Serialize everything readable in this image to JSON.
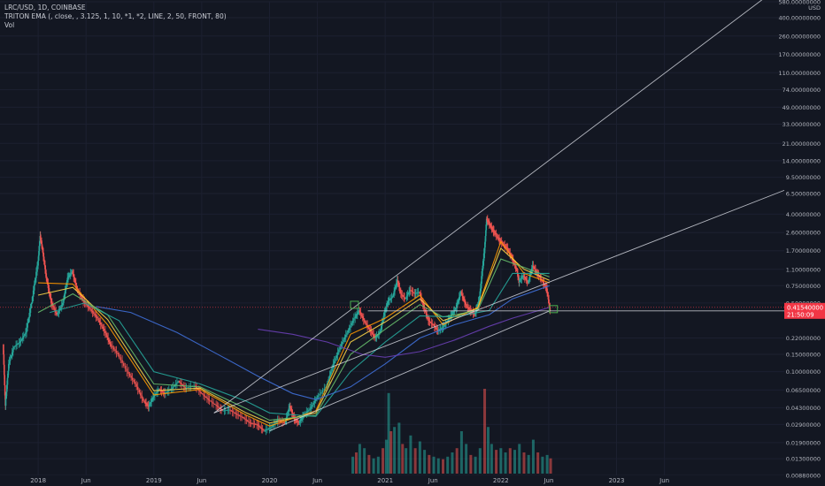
{
  "header": {
    "symbol_line": "LRC/USD, 1D, COINBASE",
    "indicator_line": "TRITON EMA (, close, , 3.125, 1, 10, *1, *2, LINE, 2, 50, FRONT, 80)",
    "volume_line": "Vol"
  },
  "price_axis": {
    "currency": "USD",
    "current_price": "0.41540000",
    "countdown": "21:50:09"
  },
  "colors": {
    "background": "#131722",
    "up_candle": "#26a69a",
    "down_candle": "#ef5350",
    "price_label": "#f23645",
    "trendline": "#d1d4dc"
  },
  "chart_data": {
    "type": "line",
    "scale": "log",
    "ylim": [
      0.0088,
      580
    ],
    "y_ticks": [
      {
        "label": "580.00000000",
        "value": 580
      },
      {
        "label": "400.00000000",
        "value": 400
      },
      {
        "label": "260.00000000",
        "value": 260
      },
      {
        "label": "170.00000000",
        "value": 170
      },
      {
        "label": "110.00000000",
        "value": 110
      },
      {
        "label": "74.00000000",
        "value": 74
      },
      {
        "label": "49.00000000",
        "value": 49
      },
      {
        "label": "33.00000000",
        "value": 33
      },
      {
        "label": "21.00000000",
        "value": 21
      },
      {
        "label": "14.00000000",
        "value": 14
      },
      {
        "label": "9.50000000",
        "value": 9.5
      },
      {
        "label": "6.50000000",
        "value": 6.5
      },
      {
        "label": "4.00000000",
        "value": 4.0
      },
      {
        "label": "2.60000000",
        "value": 2.6
      },
      {
        "label": "1.70000000",
        "value": 1.7
      },
      {
        "label": "1.10000000",
        "value": 1.1
      },
      {
        "label": "0.75000000",
        "value": 0.75
      },
      {
        "label": "0.50000000",
        "value": 0.5
      },
      {
        "label": "0.22000000",
        "value": 0.22
      },
      {
        "label": "0.15000000",
        "value": 0.15
      },
      {
        "label": "0.10000000",
        "value": 0.1
      },
      {
        "label": "0.06500000",
        "value": 0.065
      },
      {
        "label": "0.04300000",
        "value": 0.043
      },
      {
        "label": "0.02900000",
        "value": 0.029
      },
      {
        "label": "0.01900000",
        "value": 0.019
      },
      {
        "label": "0.01300000",
        "value": 0.013
      },
      {
        "label": "0.00880000",
        "value": 0.0088
      }
    ],
    "x_ticks": [
      {
        "label": "2018",
        "t": 0.0
      },
      {
        "label": "Jun",
        "t": 0.414
      },
      {
        "label": "2019",
        "t": 1.0
      },
      {
        "label": "Jun",
        "t": 1.414
      },
      {
        "label": "2020",
        "t": 2.0
      },
      {
        "label": "Jun",
        "t": 2.414
      },
      {
        "label": "2021",
        "t": 3.0
      },
      {
        "label": "Jun",
        "t": 3.414
      },
      {
        "label": "2022",
        "t": 4.0
      },
      {
        "label": "Jun",
        "t": 4.414
      },
      {
        "label": "2023",
        "t": 5.0
      },
      {
        "label": "Jun",
        "t": 5.414
      }
    ],
    "x_range": [
      -0.33,
      6.45
    ],
    "current_price": 0.4154,
    "price_path": [
      [
        -0.3,
        0.19
      ],
      [
        -0.28,
        0.045
      ],
      [
        -0.25,
        0.12
      ],
      [
        -0.2,
        0.18
      ],
      [
        -0.15,
        0.2
      ],
      [
        -0.1,
        0.25
      ],
      [
        -0.05,
        0.5
      ],
      [
        0.0,
        1.2
      ],
      [
        0.02,
        2.4
      ],
      [
        0.04,
        1.8
      ],
      [
        0.07,
        1.0
      ],
      [
        0.12,
        0.5
      ],
      [
        0.17,
        0.38
      ],
      [
        0.22,
        0.5
      ],
      [
        0.26,
        0.9
      ],
      [
        0.3,
        1.05
      ],
      [
        0.34,
        0.7
      ],
      [
        0.4,
        0.52
      ],
      [
        0.46,
        0.43
      ],
      [
        0.52,
        0.35
      ],
      [
        0.58,
        0.26
      ],
      [
        0.63,
        0.19
      ],
      [
        0.7,
        0.15
      ],
      [
        0.78,
        0.1
      ],
      [
        0.85,
        0.075
      ],
      [
        0.92,
        0.05
      ],
      [
        0.96,
        0.044
      ],
      [
        1.0,
        0.055
      ],
      [
        1.05,
        0.066
      ],
      [
        1.1,
        0.06
      ],
      [
        1.16,
        0.067
      ],
      [
        1.22,
        0.08
      ],
      [
        1.28,
        0.068
      ],
      [
        1.36,
        0.072
      ],
      [
        1.42,
        0.06
      ],
      [
        1.48,
        0.052
      ],
      [
        1.55,
        0.045
      ],
      [
        1.6,
        0.04
      ],
      [
        1.66,
        0.041
      ],
      [
        1.72,
        0.037
      ],
      [
        1.78,
        0.034
      ],
      [
        1.84,
        0.03
      ],
      [
        1.9,
        0.029
      ],
      [
        1.96,
        0.025
      ],
      [
        2.02,
        0.027
      ],
      [
        2.08,
        0.032
      ],
      [
        2.14,
        0.03
      ],
      [
        2.18,
        0.045
      ],
      [
        2.22,
        0.033
      ],
      [
        2.26,
        0.03
      ],
      [
        2.3,
        0.036
      ],
      [
        2.36,
        0.042
      ],
      [
        2.42,
        0.055
      ],
      [
        2.5,
        0.07
      ],
      [
        2.56,
        0.12
      ],
      [
        2.62,
        0.18
      ],
      [
        2.68,
        0.25
      ],
      [
        2.74,
        0.35
      ],
      [
        2.78,
        0.42
      ],
      [
        2.83,
        0.32
      ],
      [
        2.88,
        0.26
      ],
      [
        2.92,
        0.22
      ],
      [
        2.96,
        0.25
      ],
      [
        3.0,
        0.4
      ],
      [
        3.03,
        0.52
      ],
      [
        3.07,
        0.58
      ],
      [
        3.11,
        0.85
      ],
      [
        3.14,
        0.62
      ],
      [
        3.18,
        0.55
      ],
      [
        3.22,
        0.68
      ],
      [
        3.26,
        0.62
      ],
      [
        3.3,
        0.65
      ],
      [
        3.34,
        0.45
      ],
      [
        3.38,
        0.33
      ],
      [
        3.42,
        0.3
      ],
      [
        3.46,
        0.26
      ],
      [
        3.5,
        0.28
      ],
      [
        3.54,
        0.32
      ],
      [
        3.58,
        0.38
      ],
      [
        3.62,
        0.45
      ],
      [
        3.66,
        0.65
      ],
      [
        3.7,
        0.48
      ],
      [
        3.74,
        0.42
      ],
      [
        3.78,
        0.38
      ],
      [
        3.82,
        0.55
      ],
      [
        3.86,
        1.6
      ],
      [
        3.88,
        3.6
      ],
      [
        3.91,
        3.1
      ],
      [
        3.94,
        2.7
      ],
      [
        3.98,
        2.3
      ],
      [
        4.02,
        2.0
      ],
      [
        4.06,
        1.8
      ],
      [
        4.1,
        1.45
      ],
      [
        4.14,
        1.1
      ],
      [
        4.16,
        0.82
      ],
      [
        4.2,
        0.95
      ],
      [
        4.24,
        0.8
      ],
      [
        4.28,
        1.2
      ],
      [
        4.32,
        1.0
      ],
      [
        4.36,
        0.85
      ],
      [
        4.4,
        0.7
      ],
      [
        4.43,
        0.42
      ]
    ],
    "ema_lines": [
      {
        "color": "#ff9800",
        "points": [
          [
            0.0,
            0.8
          ],
          [
            0.3,
            0.78
          ],
          [
            0.6,
            0.3
          ],
          [
            1.0,
            0.058
          ],
          [
            1.4,
            0.066
          ],
          [
            1.8,
            0.036
          ],
          [
            2.0,
            0.028
          ],
          [
            2.4,
            0.04
          ],
          [
            2.7,
            0.24
          ],
          [
            3.0,
            0.35
          ],
          [
            3.3,
            0.6
          ],
          [
            3.5,
            0.3
          ],
          [
            3.8,
            0.45
          ],
          [
            4.0,
            2.1
          ],
          [
            4.2,
            1.0
          ],
          [
            4.42,
            0.8
          ]
        ]
      },
      {
        "color": "#f7d047",
        "points": [
          [
            0.0,
            0.6
          ],
          [
            0.3,
            0.72
          ],
          [
            0.6,
            0.34
          ],
          [
            1.0,
            0.064
          ],
          [
            1.4,
            0.068
          ],
          [
            1.8,
            0.038
          ],
          [
            2.0,
            0.03
          ],
          [
            2.4,
            0.038
          ],
          [
            2.7,
            0.2
          ],
          [
            3.0,
            0.32
          ],
          [
            3.3,
            0.55
          ],
          [
            3.5,
            0.33
          ],
          [
            3.8,
            0.44
          ],
          [
            4.0,
            1.8
          ],
          [
            4.2,
            1.1
          ],
          [
            4.42,
            0.85
          ]
        ]
      },
      {
        "color": "#66bb6a",
        "points": [
          [
            0.0,
            0.4
          ],
          [
            0.3,
            0.62
          ],
          [
            0.6,
            0.38
          ],
          [
            1.0,
            0.075
          ],
          [
            1.4,
            0.07
          ],
          [
            1.8,
            0.042
          ],
          [
            2.0,
            0.032
          ],
          [
            2.4,
            0.036
          ],
          [
            2.7,
            0.15
          ],
          [
            3.0,
            0.27
          ],
          [
            3.3,
            0.48
          ],
          [
            3.5,
            0.36
          ],
          [
            3.8,
            0.42
          ],
          [
            4.0,
            1.4
          ],
          [
            4.2,
            1.15
          ],
          [
            4.42,
            0.92
          ]
        ]
      },
      {
        "color": "#26a69a",
        "points": [
          [
            0.1,
            0.4
          ],
          [
            0.4,
            0.5
          ],
          [
            0.7,
            0.33
          ],
          [
            1.0,
            0.1
          ],
          [
            1.4,
            0.075
          ],
          [
            1.8,
            0.05
          ],
          [
            2.0,
            0.038
          ],
          [
            2.4,
            0.035
          ],
          [
            2.7,
            0.1
          ],
          [
            3.0,
            0.2
          ],
          [
            3.3,
            0.37
          ],
          [
            3.6,
            0.36
          ],
          [
            3.9,
            0.42
          ],
          [
            4.1,
            1.0
          ],
          [
            4.42,
            1.0
          ]
        ]
      },
      {
        "color": "#3f6fd8",
        "points": [
          [
            0.5,
            0.46
          ],
          [
            0.8,
            0.4
          ],
          [
            1.2,
            0.25
          ],
          [
            1.6,
            0.14
          ],
          [
            1.9,
            0.09
          ],
          [
            2.2,
            0.06
          ],
          [
            2.4,
            0.052
          ],
          [
            2.7,
            0.07
          ],
          [
            3.0,
            0.12
          ],
          [
            3.3,
            0.22
          ],
          [
            3.6,
            0.3
          ],
          [
            3.9,
            0.38
          ],
          [
            4.1,
            0.55
          ],
          [
            4.42,
            0.75
          ]
        ]
      },
      {
        "color": "#6a3fb5",
        "points": [
          [
            1.9,
            0.27
          ],
          [
            2.2,
            0.24
          ],
          [
            2.5,
            0.2
          ],
          [
            2.8,
            0.15
          ],
          [
            3.0,
            0.14
          ],
          [
            3.3,
            0.16
          ],
          [
            3.6,
            0.21
          ],
          [
            3.9,
            0.29
          ],
          [
            4.1,
            0.35
          ],
          [
            4.42,
            0.45
          ]
        ]
      }
    ],
    "trendlines": [
      {
        "from": [
          1.52,
          0.038
        ],
        "to": [
          6.45,
          900
        ]
      },
      {
        "from": [
          1.52,
          0.038
        ],
        "to": [
          6.45,
          7.0
        ]
      },
      {
        "from": [
          2.0,
          0.025
        ],
        "to": [
          4.43,
          0.42
        ]
      },
      {
        "from": [
          2.85,
          0.4154
        ],
        "to": [
          6.45,
          0.4154
        ]
      }
    ],
    "volume": [
      [
        2.72,
        0.2
      ],
      [
        2.75,
        0.25
      ],
      [
        2.78,
        0.35
      ],
      [
        2.82,
        0.3
      ],
      [
        2.86,
        0.22
      ],
      [
        2.9,
        0.18
      ],
      [
        2.94,
        0.2
      ],
      [
        2.98,
        0.3
      ],
      [
        3.01,
        0.4
      ],
      [
        3.03,
        0.95
      ],
      [
        3.05,
        0.5
      ],
      [
        3.08,
        0.55
      ],
      [
        3.12,
        0.6
      ],
      [
        3.15,
        0.35
      ],
      [
        3.18,
        0.3
      ],
      [
        3.22,
        0.45
      ],
      [
        3.26,
        0.3
      ],
      [
        3.3,
        0.38
      ],
      [
        3.34,
        0.28
      ],
      [
        3.38,
        0.22
      ],
      [
        3.42,
        0.2
      ],
      [
        3.46,
        0.18
      ],
      [
        3.5,
        0.17
      ],
      [
        3.54,
        0.2
      ],
      [
        3.58,
        0.25
      ],
      [
        3.62,
        0.3
      ],
      [
        3.66,
        0.5
      ],
      [
        3.7,
        0.35
      ],
      [
        3.74,
        0.22
      ],
      [
        3.78,
        0.2
      ],
      [
        3.82,
        0.3
      ],
      [
        3.86,
        1.0
      ],
      [
        3.89,
        0.55
      ],
      [
        3.92,
        0.35
      ],
      [
        3.96,
        0.28
      ],
      [
        4.0,
        0.3
      ],
      [
        4.04,
        0.25
      ],
      [
        4.08,
        0.3
      ],
      [
        4.12,
        0.28
      ],
      [
        4.16,
        0.35
      ],
      [
        4.2,
        0.25
      ],
      [
        4.24,
        0.22
      ],
      [
        4.28,
        0.4
      ],
      [
        4.32,
        0.25
      ],
      [
        4.36,
        0.2
      ],
      [
        4.4,
        0.22
      ],
      [
        4.43,
        0.18
      ]
    ]
  }
}
